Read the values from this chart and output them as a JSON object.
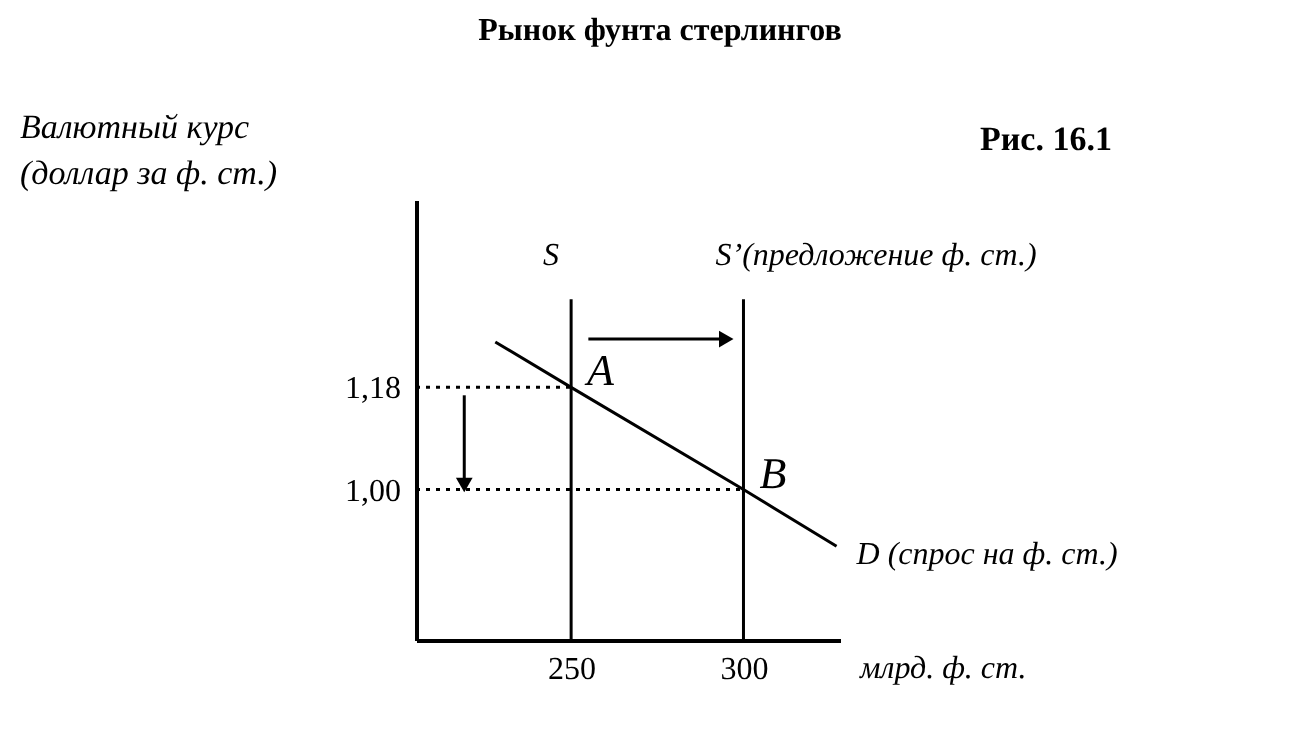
{
  "chart_data": {
    "type": "line",
    "title": "Рынок фунта стерлингов",
    "xlabel": "млрд. ф. ст.",
    "ylabel": "Валютный курс\n(доллар за ф. ст.)",
    "xlim": [
      205,
      328
    ],
    "ylim": [
      0.735,
      1.51
    ],
    "xticks": [
      250,
      300
    ],
    "yticks": [
      {
        "value": 1.18,
        "label": "1,18"
      },
      {
        "value": 1.0,
        "label": "1,00"
      }
    ],
    "grid": false,
    "series": [
      {
        "name": "D (спрос на ф. ст.)",
        "color": "#000000",
        "x": [
          228,
          250,
          300,
          327
        ],
        "values": [
          1.26,
          1.18,
          1.0,
          0.9
        ]
      },
      {
        "name": "S",
        "color": "#000000",
        "x": [
          250,
          250
        ],
        "values": [
          0.735,
          1.335
        ]
      },
      {
        "name": "S’(предложение ф. ст.)",
        "color": "#000000",
        "x": [
          300,
          300
        ],
        "values": [
          0.735,
          1.335
        ]
      },
      {
        "color": "#000000",
        "x": [
          205,
          250
        ],
        "values": [
          1.18,
          1.18
        ],
        "line_style": "dotted"
      },
      {
        "color": "#000000",
        "x": [
          205,
          300
        ],
        "values": [
          1.0,
          1.0
        ],
        "line_style": "dotted"
      },
      {
        "color": "#000000",
        "x": [
          255,
          295
        ],
        "values": [
          1.265,
          1.265
        ],
        "marker": "triangle"
      },
      {
        "color": "#000000",
        "x": [
          219,
          219
        ],
        "values": [
          1.166,
          1.008
        ],
        "marker": "triangle"
      }
    ],
    "annotations": [
      "Рис. 16.1",
      {
        "text": "A",
        "x": 250,
        "y": 1.18
      },
      {
        "text": "B",
        "x": 300,
        "y": 1.0
      }
    ]
  }
}
